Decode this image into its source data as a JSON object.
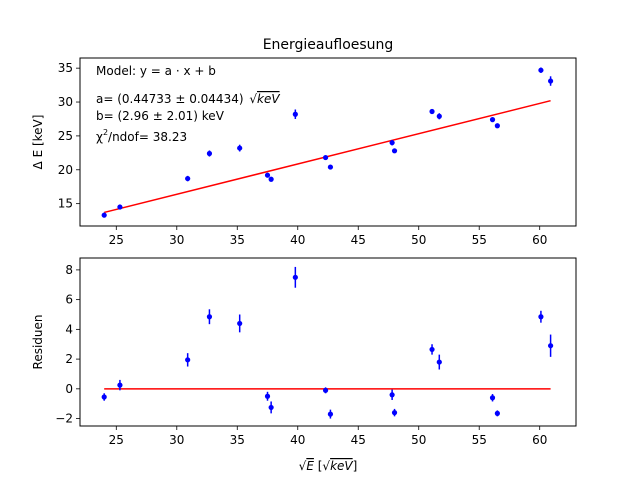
{
  "chart_data": [
    {
      "type": "scatter",
      "title": "Energieaufloesung",
      "xlabel_main": "E",
      "xlabel_unit": "keV",
      "ylabel": "Δ E [keV]",
      "xlim": [
        22,
        63
      ],
      "ylim": [
        11.7,
        36.5
      ],
      "xticks": [
        25,
        30,
        35,
        40,
        45,
        50,
        55,
        60
      ],
      "yticks": [
        15,
        20,
        25,
        30,
        35
      ],
      "annotations": {
        "model": "Model: y = a · x + b",
        "a_prefix": "a= (0.44733 ± 0.04434)",
        "a_unit": "keV",
        "b": "b= (2.96 ± 2.01) keV",
        "chi_prefix": "χ",
        "chi_sup": "2",
        "chi_suffix": "/ndof= 38.23"
      },
      "fit_line": {
        "x": [
          24.0,
          60.9
        ],
        "y": [
          13.7,
          30.2
        ],
        "color": "#ff0000"
      },
      "points": {
        "x": [
          24.0,
          25.3,
          30.9,
          32.7,
          35.2,
          37.5,
          37.8,
          39.8,
          42.3,
          42.7,
          47.8,
          48.0,
          51.1,
          51.7,
          56.1,
          56.5,
          60.1,
          60.9
        ],
        "y": [
          13.3,
          14.5,
          18.7,
          22.4,
          23.2,
          19.2,
          18.6,
          28.2,
          21.8,
          20.4,
          24.0,
          22.8,
          28.6,
          27.9,
          27.4,
          26.5,
          34.7,
          33.1
        ],
        "yerr": [
          0.25,
          0.3,
          0.4,
          0.45,
          0.5,
          0.35,
          0.35,
          0.7,
          0.25,
          0.3,
          0.4,
          0.3,
          0.35,
          0.45,
          0.3,
          0.3,
          0.4,
          0.7
        ],
        "color": "#0000ff"
      }
    },
    {
      "type": "scatter",
      "xlabel_main": "E",
      "xlabel_unit": "keV",
      "ylabel": "Residuen",
      "xlim": [
        22,
        63
      ],
      "ylim": [
        -2.5,
        8.8
      ],
      "xticks": [
        25,
        30,
        35,
        40,
        45,
        50,
        55,
        60
      ],
      "yticks": [
        -2,
        0,
        2,
        4,
        6,
        8
      ],
      "zero_line": {
        "x": [
          24.0,
          60.9
        ],
        "y": [
          0,
          0
        ],
        "color": "#ff0000"
      },
      "points": {
        "x": [
          24.0,
          25.3,
          30.9,
          32.7,
          35.2,
          37.5,
          37.8,
          39.8,
          42.3,
          42.7,
          47.8,
          48.0,
          51.1,
          51.7,
          56.1,
          56.5,
          60.1,
          60.9
        ],
        "y": [
          -0.55,
          0.25,
          1.95,
          4.85,
          4.4,
          -0.5,
          -1.25,
          7.5,
          -0.1,
          -1.7,
          -0.4,
          -1.6,
          2.65,
          1.8,
          -0.6,
          -1.65,
          4.85,
          2.9
        ],
        "yerr": [
          0.25,
          0.35,
          0.45,
          0.5,
          0.6,
          0.3,
          0.4,
          0.7,
          0.2,
          0.3,
          0.35,
          0.25,
          0.35,
          0.5,
          0.25,
          0.2,
          0.4,
          0.75
        ],
        "color": "#0000ff"
      }
    }
  ]
}
